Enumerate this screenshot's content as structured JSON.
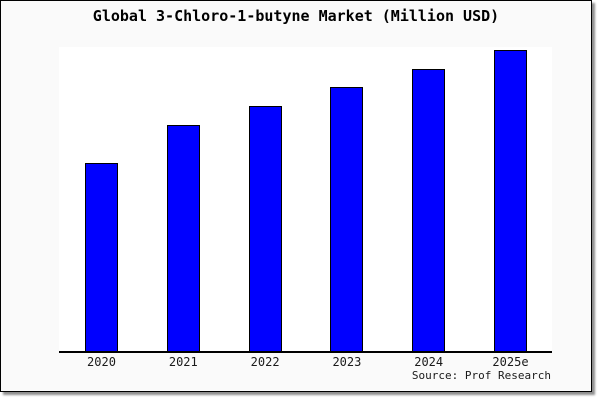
{
  "chart_data": {
    "type": "bar",
    "title": "Global 3-Chloro-1-butyne Market (Million USD)",
    "categories": [
      "2020",
      "2021",
      "2022",
      "2023",
      "2024",
      "2025e"
    ],
    "values": [
      187,
      225,
      244,
      263,
      281,
      300
    ],
    "ylim": [
      0,
      303
    ],
    "y_axis": {
      "visible": false,
      "note": "no y-axis ticks, labels or gridlines shown; values are relative bar heights in screen px"
    },
    "xlabel": "",
    "ylabel": "",
    "grid": false,
    "legend": false,
    "source": "Source: Prof Research",
    "colors": {
      "bar_fill": "#0000ff",
      "bar_border": "#000000",
      "axis": "#000000",
      "frame_background": "#fafafa",
      "plot_background": "#ffffff",
      "text": "#000000"
    }
  }
}
